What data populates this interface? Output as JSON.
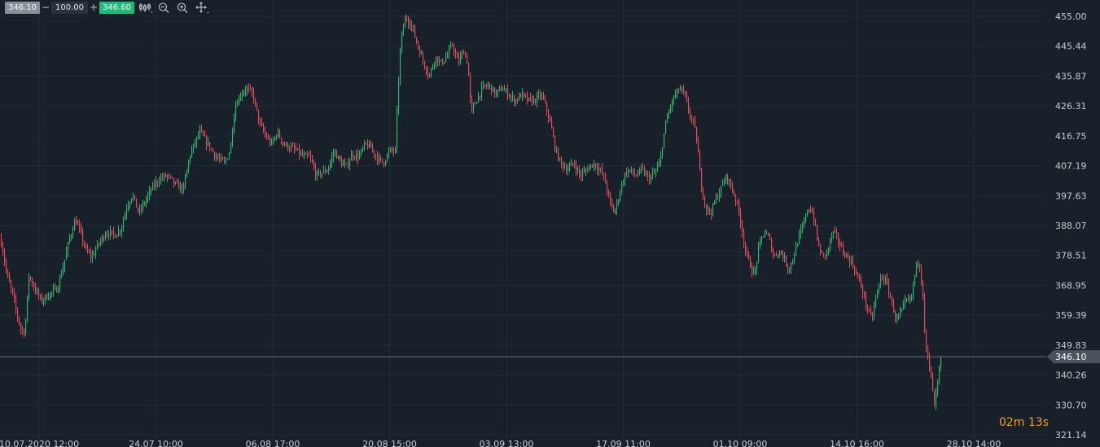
{
  "toolbar": {
    "bid": "346.10",
    "minus": "−",
    "quantity": "100.00",
    "plus": "+",
    "ask": "346.60",
    "icons": [
      "candles-icon",
      "zoom-out-icon",
      "zoom-in-icon",
      "crosshair-icon"
    ]
  },
  "timer": {
    "minutes": "02",
    "minutes_unit": "m",
    "seconds": "13",
    "seconds_unit": "s"
  },
  "colors": {
    "up": "#1fb978",
    "down": "#e84a5a",
    "background": "#18202a",
    "grid": "#222b36",
    "price_line": "#6a737d"
  },
  "chart_data": {
    "type": "candlestick",
    "current_price": 346.1,
    "ylim": [
      321.14,
      457.5
    ],
    "y_ticks": [
      455.0,
      445.44,
      435.87,
      426.31,
      416.75,
      407.19,
      397.63,
      388.07,
      378.51,
      368.95,
      359.39,
      349.83,
      340.26,
      330.7,
      321.14
    ],
    "x_ticks": [
      "10.07.2020 12:00",
      "24.07 10:00",
      "06.08 17:00",
      "20.08 15:00",
      "03.09 13:00",
      "17.09 11:00",
      "01.10 09:00",
      "14.10 16:00",
      "28.10 14:00"
    ],
    "price_path": [
      [
        0,
        384
      ],
      [
        3,
        380
      ],
      [
        8,
        372
      ],
      [
        15,
        366
      ],
      [
        20,
        360
      ],
      [
        25,
        355
      ],
      [
        30,
        354
      ],
      [
        35,
        372
      ],
      [
        42,
        368
      ],
      [
        50,
        364
      ],
      [
        60,
        366
      ],
      [
        70,
        368
      ],
      [
        78,
        376
      ],
      [
        85,
        384
      ],
      [
        92,
        390
      ],
      [
        98,
        386
      ],
      [
        105,
        380
      ],
      [
        112,
        378
      ],
      [
        120,
        382
      ],
      [
        130,
        386
      ],
      [
        140,
        385
      ],
      [
        148,
        387
      ],
      [
        155,
        394
      ],
      [
        162,
        398
      ],
      [
        170,
        392
      ],
      [
        178,
        396
      ],
      [
        186,
        400
      ],
      [
        195,
        403
      ],
      [
        205,
        404
      ],
      [
        215,
        401
      ],
      [
        225,
        400
      ],
      [
        232,
        410
      ],
      [
        238,
        414
      ],
      [
        245,
        418
      ],
      [
        255,
        414
      ],
      [
        265,
        410
      ],
      [
        275,
        408
      ],
      [
        282,
        412
      ],
      [
        288,
        426
      ],
      [
        295,
        430
      ],
      [
        302,
        432
      ],
      [
        310,
        430
      ],
      [
        318,
        421
      ],
      [
        325,
        417
      ],
      [
        333,
        414
      ],
      [
        340,
        418
      ],
      [
        348,
        414
      ],
      [
        356,
        413
      ],
      [
        364,
        412
      ],
      [
        372,
        410
      ],
      [
        380,
        410
      ],
      [
        388,
        404
      ],
      [
        395,
        405
      ],
      [
        402,
        406
      ],
      [
        410,
        412
      ],
      [
        418,
        408
      ],
      [
        425,
        407
      ],
      [
        432,
        411
      ],
      [
        440,
        410
      ],
      [
        448,
        414
      ],
      [
        455,
        413
      ],
      [
        462,
        410
      ],
      [
        470,
        408
      ],
      [
        478,
        412
      ],
      [
        485,
        412
      ],
      [
        488,
        430
      ],
      [
        492,
        448
      ],
      [
        498,
        455
      ],
      [
        505,
        452
      ],
      [
        512,
        446
      ],
      [
        520,
        440
      ],
      [
        527,
        436
      ],
      [
        534,
        442
      ],
      [
        541,
        440
      ],
      [
        548,
        442
      ],
      [
        555,
        446
      ],
      [
        562,
        440
      ],
      [
        569,
        444
      ],
      [
        574,
        440
      ],
      [
        578,
        424
      ],
      [
        584,
        428
      ],
      [
        592,
        432
      ],
      [
        600,
        433
      ],
      [
        608,
        430
      ],
      [
        616,
        432
      ],
      [
        624,
        430
      ],
      [
        632,
        428
      ],
      [
        640,
        430
      ],
      [
        648,
        428
      ],
      [
        656,
        428
      ],
      [
        664,
        430
      ],
      [
        670,
        426
      ],
      [
        676,
        420
      ],
      [
        682,
        412
      ],
      [
        688,
        408
      ],
      [
        696,
        406
      ],
      [
        704,
        408
      ],
      [
        712,
        404
      ],
      [
        720,
        406
      ],
      [
        728,
        408
      ],
      [
        736,
        406
      ],
      [
        742,
        403
      ],
      [
        748,
        396
      ],
      [
        754,
        392
      ],
      [
        760,
        398
      ],
      [
        766,
        404
      ],
      [
        772,
        406
      ],
      [
        780,
        404
      ],
      [
        788,
        406
      ],
      [
        796,
        403
      ],
      [
        804,
        405
      ],
      [
        810,
        408
      ],
      [
        814,
        416
      ],
      [
        820,
        424
      ],
      [
        827,
        429
      ],
      [
        834,
        432
      ],
      [
        840,
        430
      ],
      [
        846,
        424
      ],
      [
        852,
        420
      ],
      [
        856,
        414
      ],
      [
        860,
        402
      ],
      [
        866,
        394
      ],
      [
        872,
        392
      ],
      [
        878,
        396
      ],
      [
        885,
        400
      ],
      [
        892,
        404
      ],
      [
        898,
        400
      ],
      [
        904,
        396
      ],
      [
        910,
        388
      ],
      [
        915,
        380
      ],
      [
        920,
        376
      ],
      [
        926,
        372
      ],
      [
        932,
        382
      ],
      [
        938,
        386
      ],
      [
        944,
        384
      ],
      [
        950,
        378
      ],
      [
        956,
        380
      ],
      [
        962,
        378
      ],
      [
        968,
        374
      ],
      [
        974,
        378
      ],
      [
        980,
        384
      ],
      [
        986,
        388
      ],
      [
        992,
        394
      ],
      [
        998,
        392
      ],
      [
        1004,
        382
      ],
      [
        1010,
        378
      ],
      [
        1016,
        380
      ],
      [
        1022,
        386
      ],
      [
        1028,
        384
      ],
      [
        1034,
        380
      ],
      [
        1040,
        378
      ],
      [
        1046,
        376
      ],
      [
        1052,
        372
      ],
      [
        1058,
        368
      ],
      [
        1064,
        362
      ],
      [
        1070,
        358
      ],
      [
        1076,
        366
      ],
      [
        1082,
        372
      ],
      [
        1088,
        370
      ],
      [
        1094,
        364
      ],
      [
        1100,
        358
      ],
      [
        1106,
        360
      ],
      [
        1112,
        364
      ],
      [
        1118,
        364
      ],
      [
        1124,
        374
      ],
      [
        1128,
        378
      ],
      [
        1133,
        366
      ],
      [
        1136,
        350
      ],
      [
        1140,
        344
      ],
      [
        1144,
        338
      ],
      [
        1147,
        330
      ],
      [
        1150,
        336
      ],
      [
        1153,
        342
      ],
      [
        1156,
        346.1
      ]
    ],
    "grid": true
  }
}
